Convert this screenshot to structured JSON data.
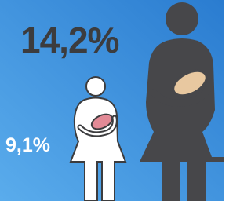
{
  "figures": [
    {
      "label": "14,2%"
    },
    {
      "label": "9,1%"
    }
  ]
}
